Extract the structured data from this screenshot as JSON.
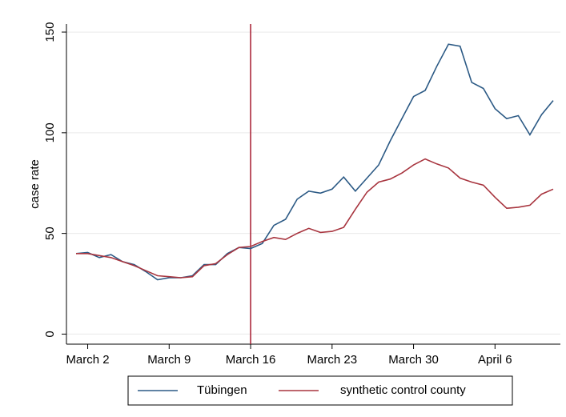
{
  "chart_data": {
    "type": "line",
    "y_label": "case rate",
    "categories": [
      null,
      "March 2",
      null,
      null,
      null,
      null,
      null,
      null,
      "March 9",
      null,
      null,
      null,
      null,
      null,
      null,
      "March 16",
      null,
      null,
      null,
      null,
      null,
      null,
      "March 23",
      null,
      null,
      null,
      null,
      null,
      null,
      "March 30",
      null,
      null,
      null,
      null,
      null,
      null,
      "April 6",
      null,
      null,
      null,
      null,
      null
    ],
    "series": [
      {
        "name": "Tübingen",
        "color": "#2c5a85",
        "values": [
          40,
          40.5,
          38,
          39.5,
          36,
          34.5,
          31,
          27,
          28,
          28,
          29,
          34.5,
          34.5,
          40,
          43,
          42.5,
          45,
          54,
          57,
          67,
          71,
          70,
          72,
          78,
          71,
          77.5,
          84,
          96,
          107,
          118,
          121,
          133,
          144,
          143,
          125,
          122,
          112,
          107,
          108.5,
          99,
          109,
          116
        ]
      },
      {
        "name": "synthetic control county",
        "color": "#a8353f",
        "values": [
          40,
          40,
          39,
          38,
          36,
          34,
          31.5,
          29,
          28.5,
          28,
          28.5,
          34,
          35,
          39.5,
          43,
          43.5,
          46,
          48,
          47,
          50,
          52.5,
          50.5,
          51,
          53,
          62,
          70.5,
          75.5,
          77,
          80,
          84,
          87,
          84.5,
          82.5,
          77.5,
          75.5,
          74,
          68,
          62.5,
          63,
          64,
          69.5,
          72
        ]
      }
    ],
    "ylim": [
      -5,
      154
    ],
    "yticks": [
      0,
      50,
      100,
      150
    ],
    "grid": true,
    "vline": {
      "category_index": 15,
      "color": "#a6192e"
    },
    "legend": "bottom"
  }
}
